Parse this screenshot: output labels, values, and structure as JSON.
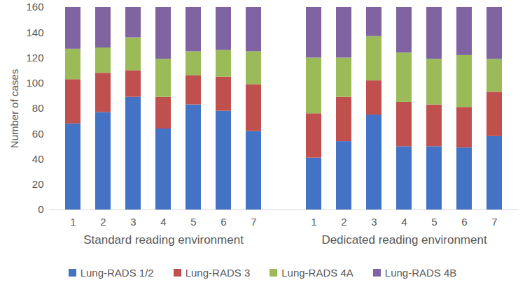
{
  "chart_data": {
    "type": "bar",
    "stacked": true,
    "y_label": "Number of cases",
    "groups": [
      "Standard reading environment",
      "Dedicated reading environment"
    ],
    "categories": [
      "1",
      "2",
      "3",
      "4",
      "5",
      "6",
      "7",
      null,
      "1",
      "2",
      "3",
      "4",
      "5",
      "6",
      "7"
    ],
    "series": [
      {
        "name": "Lung-RADS 1/2",
        "color": "#4472c4",
        "values": [
          68,
          77,
          89,
          64,
          83,
          78,
          62,
          null,
          41,
          54,
          75,
          50,
          50,
          49,
          58
        ]
      },
      {
        "name": "Lung-RADS 3",
        "color": "#c0504d",
        "values": [
          35,
          31,
          21,
          25,
          23,
          27,
          37,
          null,
          35,
          35,
          27,
          35,
          33,
          32,
          35
        ]
      },
      {
        "name": "Lung-RADS 4A",
        "color": "#9bbb59",
        "values": [
          24,
          20,
          26,
          30,
          19,
          21,
          26,
          null,
          44,
          31,
          35,
          39,
          36,
          41,
          26
        ]
      },
      {
        "name": "Lung-RADS 4B",
        "color": "#8064a2",
        "values": [
          33,
          32,
          24,
          41,
          35,
          34,
          35,
          null,
          40,
          40,
          23,
          36,
          41,
          38,
          41
        ]
      }
    ],
    "ylim": [
      0,
      160
    ],
    "yticks": [
      0,
      20,
      40,
      60,
      80,
      100,
      120,
      140,
      160
    ],
    "grid": false,
    "legend": "bottom"
  }
}
